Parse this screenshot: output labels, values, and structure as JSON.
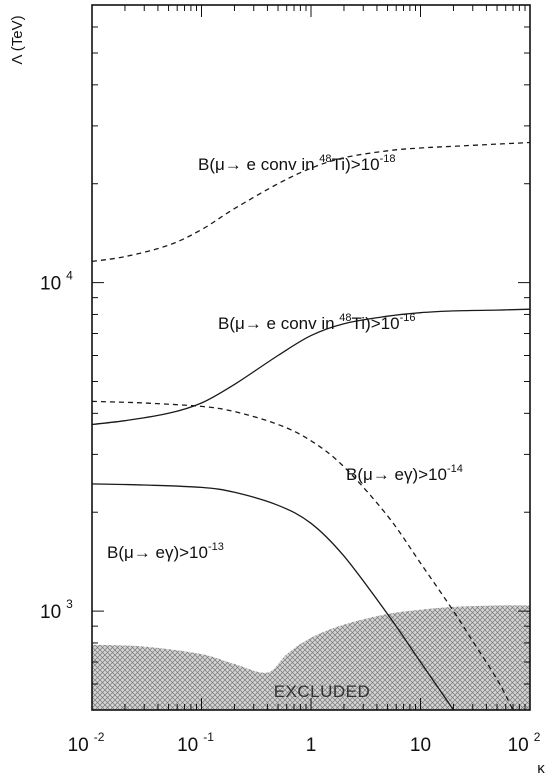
{
  "chart_data": {
    "type": "line",
    "title": "",
    "xlabel": "κ",
    "ylabel": "Λ (TeV)",
    "x_scale": "log",
    "y_scale": "log",
    "xlim": [
      0.01,
      100
    ],
    "ylim": [
      500,
      70000
    ],
    "grid": false,
    "x_ticks": [
      {
        "base": "10",
        "exp": "-2",
        "value": 0.01
      },
      {
        "base": "10",
        "exp": "-1",
        "value": 0.1
      },
      {
        "base": "1",
        "exp": "",
        "value": 1
      },
      {
        "base": "10",
        "exp": "",
        "value": 10
      },
      {
        "base": "10",
        "exp": "2",
        "value": 100
      }
    ],
    "y_ticks": [
      {
        "base": "10",
        "exp": "3",
        "value": 1000
      },
      {
        "base": "10",
        "exp": "4",
        "value": 10000
      }
    ],
    "series": [
      {
        "name": "B(μ→ e conv in 48Ti)>10-18",
        "label_parts": [
          "B(μ→ e conv in ",
          "48",
          "Ti)>10",
          "-18"
        ],
        "style": "dashed",
        "x": [
          0.01,
          0.02,
          0.05,
          0.1,
          0.2,
          0.5,
          1,
          2,
          5,
          10,
          20,
          50,
          100
        ],
        "y": [
          11600,
          12000,
          13000,
          14500,
          16800,
          20000,
          22300,
          24000,
          25200,
          25700,
          26000,
          26400,
          26700
        ]
      },
      {
        "name": "B(μ→ e conv in 48Ti)>10-16",
        "label_parts": [
          "B(μ→ e conv in ",
          "48",
          "Ti)>10",
          "-16"
        ],
        "style": "solid",
        "x": [
          0.01,
          0.02,
          0.05,
          0.1,
          0.2,
          0.5,
          1,
          2,
          5,
          10,
          20,
          50,
          100
        ],
        "y": [
          3700,
          3800,
          4000,
          4300,
          4900,
          6000,
          6900,
          7500,
          7900,
          8100,
          8200,
          8250,
          8300
        ]
      },
      {
        "name": "B(μ→ eγ)>10-14",
        "label_parts": [
          "B(μ→ eγ)>10",
          "-14"
        ],
        "style": "dashed",
        "x": [
          0.01,
          0.03,
          0.1,
          0.2,
          0.5,
          1,
          2,
          5,
          10,
          20,
          30,
          50,
          70
        ],
        "y": [
          4350,
          4300,
          4200,
          4050,
          3700,
          3300,
          2750,
          1950,
          1400,
          1000,
          810,
          620,
          500
        ]
      },
      {
        "name": "B(μ→ eγ)>10-13",
        "label_parts": [
          "B(μ→ eγ)>10",
          "-13"
        ],
        "style": "solid",
        "x": [
          0.01,
          0.03,
          0.1,
          0.2,
          0.5,
          1,
          2,
          5,
          10,
          20
        ],
        "y": [
          2440,
          2420,
          2380,
          2300,
          2100,
          1850,
          1470,
          980,
          700,
          500
        ]
      }
    ],
    "excluded_region": {
      "label": "EXCLUDED",
      "boundary_x": [
        0.01,
        0.03,
        0.1,
        0.2,
        0.4,
        0.6,
        1,
        2,
        5,
        10,
        20,
        50,
        100
      ],
      "boundary_y": [
        790,
        780,
        740,
        690,
        650,
        740,
        830,
        910,
        980,
        1010,
        1030,
        1040,
        1040
      ]
    }
  }
}
